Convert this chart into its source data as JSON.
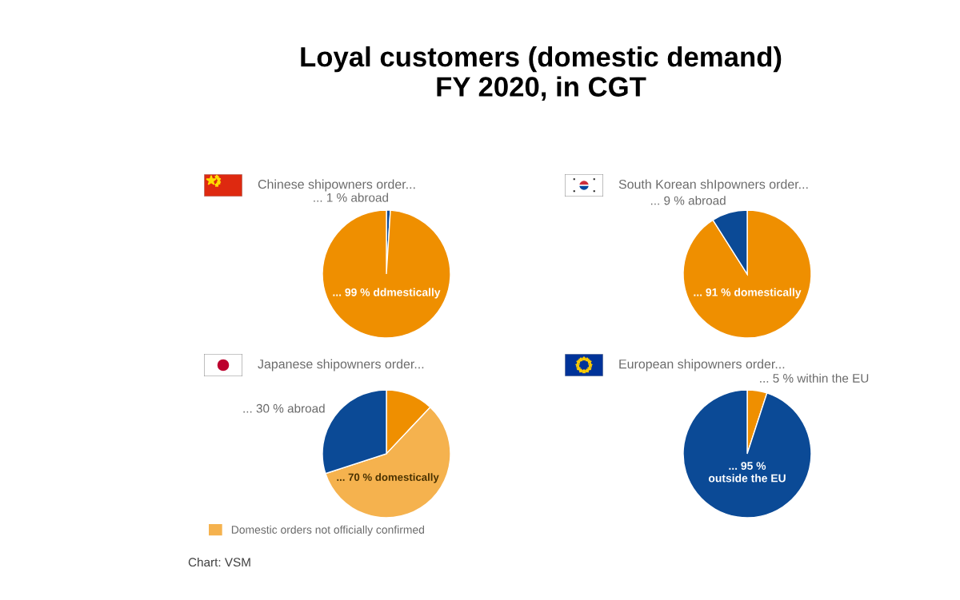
{
  "chart_data": [
    {
      "type": "other",
      "title": "Loyal customers (domestic demand)\nFY 2020, in CGT",
      "annotations": [
        "Chart: VSM"
      ]
    },
    {
      "type": "pie",
      "title": "Chinese shipowners order...",
      "categories": [
        null,
        null
      ],
      "values": [
        1,
        99
      ],
      "colors": [
        "#0b4a96",
        "#ef8f00"
      ],
      "value_labels": [
        "... 1 % abroad",
        "... 99 % ddmestically"
      ]
    },
    {
      "type": "pie",
      "title": "South Korean shIpowners order...",
      "categories": [
        null,
        null
      ],
      "values": [
        91,
        9
      ],
      "colors": [
        "#ef8f00",
        "#0b4a96"
      ],
      "value_labels": [
        "... 91 % domestically",
        "... 9 % abroad"
      ]
    },
    {
      "type": "pie",
      "title": "Japanese shipowners order...",
      "categories": [
        null,
        "Domestic orders not officially confirmed",
        null
      ],
      "values": [
        12,
        58,
        30
      ],
      "colors": [
        "#ef8f00",
        "#f5b24e",
        "#0b4a96"
      ],
      "value_labels": [
        null,
        null,
        "... 30 % abroad"
      ],
      "annotations": [
        "... 70 % domestically"
      ],
      "legend": "bottom left"
    },
    {
      "type": "pie",
      "title": "European shipowners order...",
      "categories": [
        null,
        null
      ],
      "values": [
        5,
        95
      ],
      "colors": [
        "#ef8f00",
        "#0b4a96"
      ],
      "value_labels": [
        "... 5 % within the EU",
        "... 95 %\noutside the EU"
      ]
    }
  ]
}
